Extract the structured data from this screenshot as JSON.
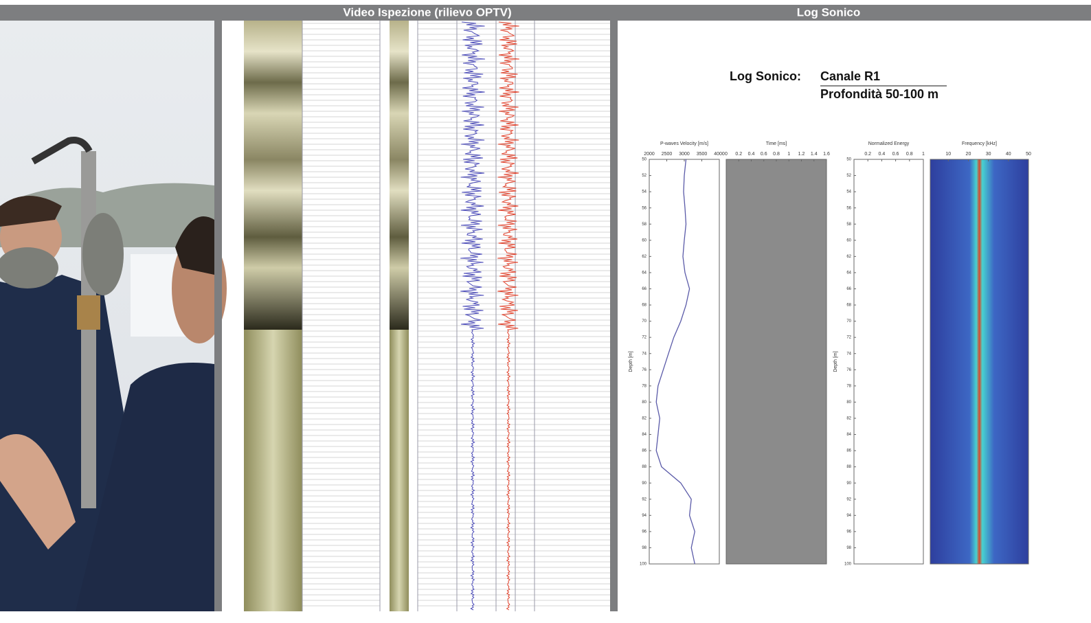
{
  "header": {
    "left_title": "Video Ispezione (rilievo OPTV)",
    "right_title": "Log Sonico"
  },
  "log_heading": {
    "label": "Log Sonico:",
    "channel": "Canale R1",
    "depth_range": "Profondità 50-100 m"
  },
  "chart_data": [
    {
      "type": "line",
      "x_label": "P-waves Velocity [m/s]",
      "y_label": "Depth [m]",
      "xlim": [
        2000,
        4000
      ],
      "xticks": [
        2000,
        2500,
        3000,
        3500,
        4000
      ],
      "ylim": [
        50,
        100
      ],
      "y_inverted": true,
      "yticks": [
        50,
        52,
        54,
        56,
        58,
        60,
        62,
        64,
        66,
        68,
        70,
        72,
        74,
        76,
        78,
        80,
        82,
        84,
        86,
        88,
        90,
        92,
        94,
        96,
        98,
        100
      ],
      "y": [
        50,
        52,
        54,
        56,
        58,
        60,
        62,
        64,
        66,
        68,
        70,
        72,
        74,
        76,
        78,
        80,
        82,
        84,
        86,
        88,
        90,
        92,
        94,
        96,
        98,
        100
      ],
      "series": [
        {
          "color": "#5a5aa8",
          "values": [
            3050,
            3000,
            2980,
            3020,
            3050,
            3000,
            2960,
            3020,
            3150,
            3050,
            2900,
            2700,
            2550,
            2400,
            2250,
            2200,
            2300,
            2250,
            2200,
            2350,
            2900,
            3200,
            3150,
            3300,
            3200,
            3300
          ]
        }
      ]
    },
    {
      "type": "waveform",
      "x_label": "Time [ms]",
      "xlim": [
        0,
        1.6
      ],
      "xticks": [
        0,
        0.2,
        0.4,
        0.6,
        0.8,
        1,
        1.2,
        1.4,
        1.6
      ]
    },
    {
      "type": "line",
      "x_label": "Normalized Energy",
      "y_label": "Depth [m]",
      "xlim": [
        0,
        1
      ],
      "xticks": [
        0.2,
        0.4,
        0.6,
        0.8,
        1
      ],
      "ylim": [
        50,
        100
      ],
      "y_inverted": true,
      "yticks": [
        50,
        52,
        54,
        56,
        58,
        60,
        62,
        64,
        66,
        68,
        70,
        72,
        74,
        76,
        78,
        80,
        82,
        84,
        86,
        88,
        90,
        92,
        94,
        96,
        98,
        100
      ]
    },
    {
      "type": "spectrogram",
      "x_label": "Frequency [kHz]",
      "xlim": [
        1,
        50
      ],
      "xticks": [
        10,
        20,
        30,
        40,
        50
      ]
    }
  ]
}
